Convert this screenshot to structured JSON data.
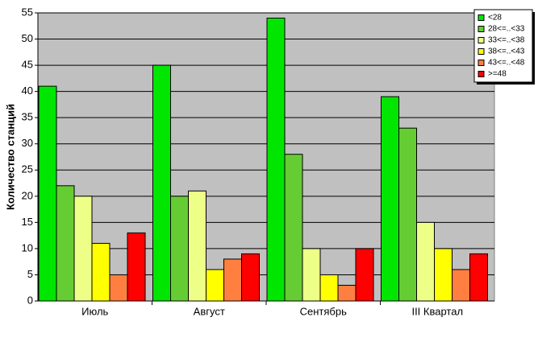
{
  "chart_data": {
    "type": "bar",
    "y_label": "Количество станций",
    "categories": [
      "Июль",
      "Август",
      "Сентябрь",
      "III Квартал"
    ],
    "series": [
      {
        "name": "<28",
        "color": "#00e600",
        "values": [
          41,
          45,
          54,
          39
        ]
      },
      {
        "name": "28<=..<33",
        "color": "#66cc33",
        "values": [
          22,
          20,
          28,
          33
        ]
      },
      {
        "name": "33<=..<38",
        "color": "#eeff88",
        "values": [
          20,
          21,
          10,
          15
        ]
      },
      {
        "name": "38<=..<43",
        "color": "#ffff00",
        "values": [
          11,
          6,
          5,
          10
        ]
      },
      {
        "name": "43<=..<48",
        "color": "#ff7f40",
        "values": [
          5,
          8,
          3,
          6
        ]
      },
      {
        "name": ">=48",
        "color": "#ff0000",
        "values": [
          13,
          9,
          10,
          9
        ]
      }
    ],
    "ylim": [
      0,
      55
    ],
    "yticks": [
      0,
      5,
      10,
      15,
      20,
      25,
      30,
      35,
      40,
      45,
      50,
      55
    ],
    "grid": true,
    "legend": "top-right"
  }
}
